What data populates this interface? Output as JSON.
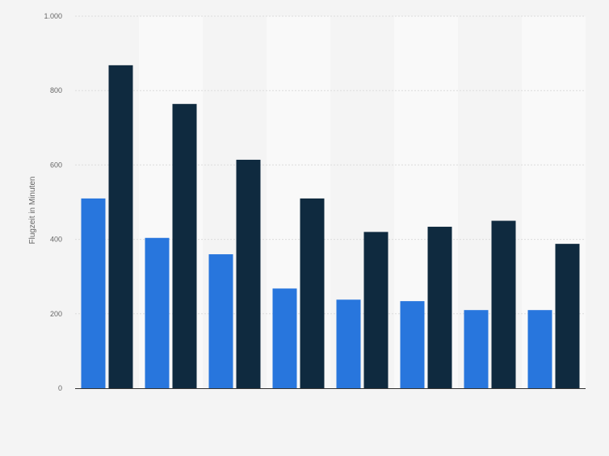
{
  "chart_data": {
    "type": "bar",
    "title": "",
    "xlabel": "",
    "ylabel": "Flugzeit in Minuten",
    "ylim": [
      0,
      1000
    ],
    "yticks": [
      0,
      200,
      400,
      600,
      800,
      1000
    ],
    "ytick_labels": [
      "0",
      "200",
      "400",
      "600",
      "800",
      "1.000"
    ],
    "grid": true,
    "legend": "none",
    "categories": [
      "",
      "",
      "",
      "",
      "",
      "",
      "",
      ""
    ],
    "series": [
      {
        "color": "#2876dd",
        "values": [
          510,
          404,
          360,
          268,
          238,
          234,
          210,
          210
        ]
      },
      {
        "color": "#0f2a3f",
        "values": [
          868,
          764,
          614,
          510,
          420,
          434,
          450,
          388
        ]
      }
    ],
    "colors": {
      "background": "#f4f4f4",
      "band": "#f9f9f9",
      "grid": "#dcdcdc",
      "axis": "#333333",
      "tick_text": "#666666"
    }
  }
}
